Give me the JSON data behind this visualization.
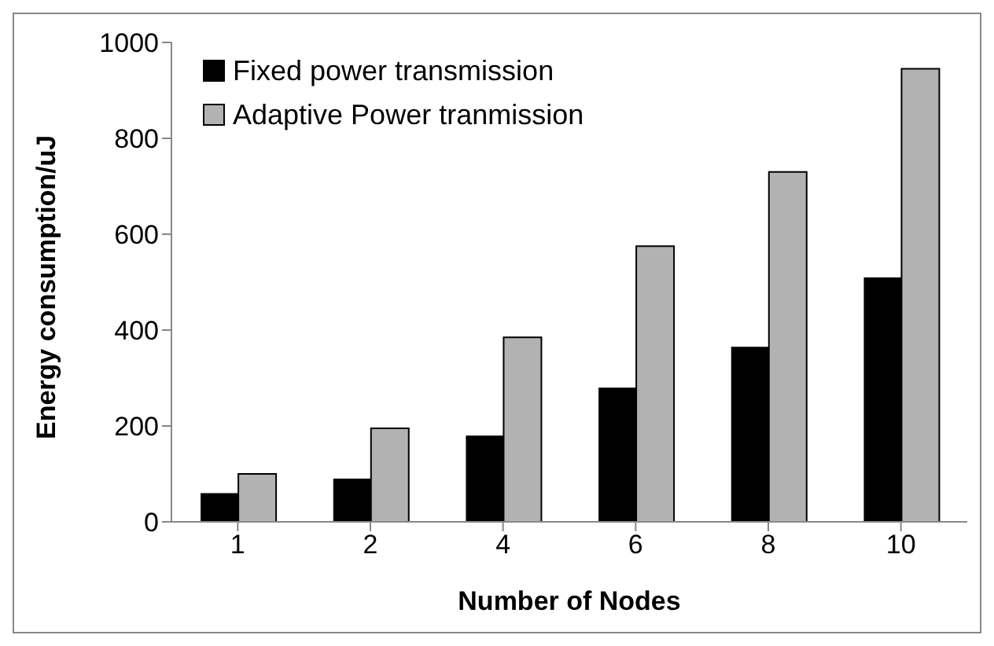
{
  "chart_data": {
    "type": "bar",
    "xlabel": "Number of Nodes",
    "ylabel": "Energy consumption/uJ",
    "categories": [
      "1",
      "2",
      "4",
      "6",
      "8",
      "10"
    ],
    "series": [
      {
        "name": "Fixed power transmission",
        "color": "#000000",
        "values": [
          60,
          90,
          180,
          280,
          365,
          510
        ]
      },
      {
        "name": "Adaptive Power tranmission",
        "color": "#b2b2b2",
        "values": [
          100,
          195,
          385,
          575,
          730,
          945
        ]
      }
    ],
    "ylim": [
      0,
      1000
    ],
    "yticks": [
      0,
      200,
      400,
      600,
      800,
      1000
    ],
    "grid": false,
    "legend": "top left"
  }
}
